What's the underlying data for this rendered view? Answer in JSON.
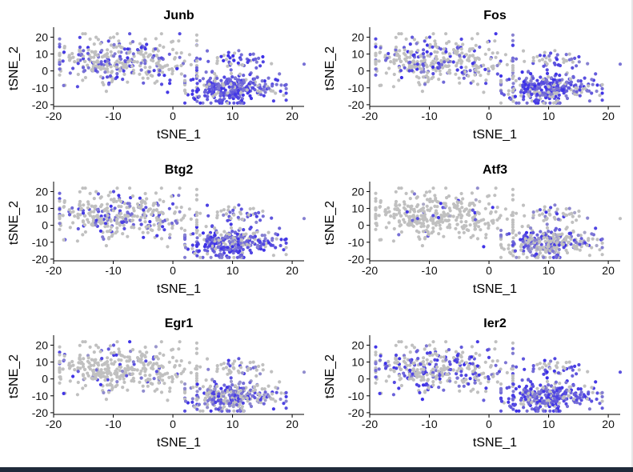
{
  "colors": {
    "low": "#c0c0c0",
    "high": "#3b2ee8",
    "axis": "#000000"
  },
  "chart_data": [
    {
      "type": "scatter",
      "title": "Junb",
      "xlabel": "tSNE_1",
      "ylabel": "tSNE_2",
      "xlim": [
        -20,
        22
      ],
      "ylim": [
        -21,
        24
      ],
      "xticks": [
        -20,
        -10,
        0,
        10,
        20
      ],
      "yticks": [
        -20,
        -10,
        0,
        10,
        20
      ],
      "seed": 11,
      "expr": {
        "left": 0.35,
        "right": 0.85,
        "floor": 0.45
      }
    },
    {
      "type": "scatter",
      "title": "Fos",
      "xlabel": "tSNE_1",
      "ylabel": "tSNE_2",
      "xlim": [
        -20,
        22
      ],
      "ylim": [
        -21,
        24
      ],
      "xticks": [
        -20,
        -10,
        0,
        10,
        20
      ],
      "yticks": [
        -20,
        -10,
        0,
        10,
        20
      ],
      "seed": 23,
      "expr": {
        "left": 0.3,
        "right": 0.8,
        "floor": 0.4
      }
    },
    {
      "type": "scatter",
      "title": "Btg2",
      "xlabel": "tSNE_1",
      "ylabel": "tSNE_2",
      "xlim": [
        -20,
        22
      ],
      "ylim": [
        -21,
        24
      ],
      "xticks": [
        -20,
        -10,
        0,
        10,
        20
      ],
      "yticks": [
        -20,
        -10,
        0,
        10,
        20
      ],
      "seed": 37,
      "expr": {
        "left": 0.3,
        "right": 0.75,
        "floor": 0.4
      }
    },
    {
      "type": "scatter",
      "title": "Atf3",
      "xlabel": "tSNE_1",
      "ylabel": "tSNE_2",
      "xlim": [
        -20,
        22
      ],
      "ylim": [
        -21,
        24
      ],
      "xticks": [
        -20,
        -10,
        0,
        10,
        20
      ],
      "yticks": [
        -20,
        -10,
        0,
        10,
        20
      ],
      "seed": 41,
      "expr": {
        "left": 0.08,
        "right": 0.45,
        "floor": 0.15
      }
    },
    {
      "type": "scatter",
      "title": "Egr1",
      "xlabel": "tSNE_1",
      "ylabel": "tSNE_2",
      "xlim": [
        -20,
        22
      ],
      "ylim": [
        -21,
        24
      ],
      "xticks": [
        -20,
        -10,
        0,
        10,
        20
      ],
      "yticks": [
        -20,
        -10,
        0,
        10,
        20
      ],
      "seed": 53,
      "expr": {
        "left": 0.12,
        "right": 0.6,
        "floor": 0.25
      }
    },
    {
      "type": "scatter",
      "title": "Ier2",
      "xlabel": "tSNE_1",
      "ylabel": "tSNE_2",
      "xlim": [
        -20,
        22
      ],
      "ylim": [
        -21,
        24
      ],
      "xticks": [
        -20,
        -10,
        0,
        10,
        20
      ],
      "yticks": [
        -20,
        -10,
        0,
        10,
        20
      ],
      "seed": 67,
      "expr": {
        "left": 0.4,
        "right": 0.8,
        "floor": 0.45
      }
    }
  ]
}
